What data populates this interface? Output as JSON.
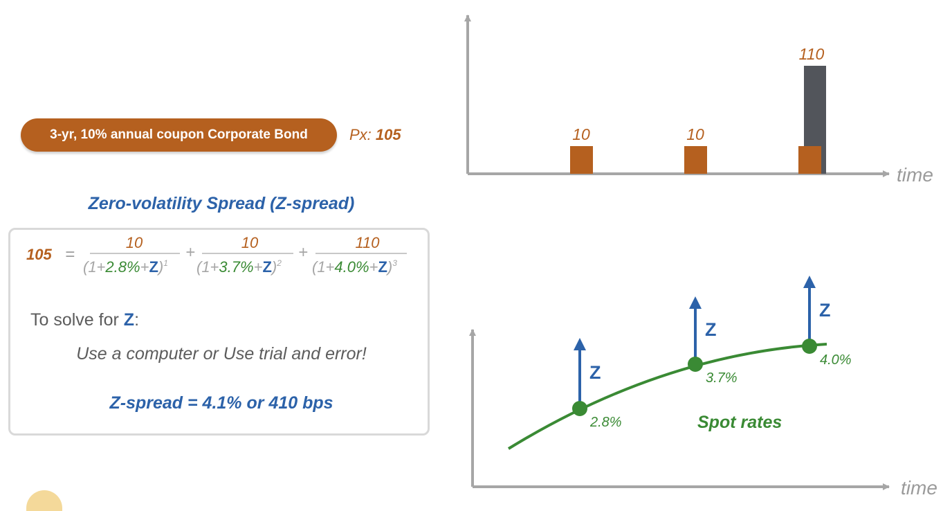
{
  "bond": {
    "label": "3-yr, 10% annual coupon Corporate Bond",
    "price_prefix": "Px: ",
    "price": "105"
  },
  "section_title": "Zero-volatility Spread (Z-spread)",
  "equation": {
    "lhs": "105",
    "equals": "=",
    "plus": "+",
    "terms": [
      {
        "num": "10",
        "pre": "(1+",
        "rate": "2.8%",
        "plus": "+",
        "z": "Z",
        "close": ")",
        "exp": "1"
      },
      {
        "num": "10",
        "pre": "(1+",
        "rate": "3.7%",
        "plus": "+",
        "z": "Z",
        "close": ")",
        "exp": "2"
      },
      {
        "num": "110",
        "pre": "(1+",
        "rate": "4.0%",
        "plus": "+",
        "z": "Z",
        "close": ")",
        "exp": "3"
      }
    ]
  },
  "solve": {
    "prefix": "To solve for ",
    "z": "Z",
    "suffix": ":"
  },
  "method_text": "Use a computer or Use trial and error!",
  "result_text": "Z-spread = 4.1% or 410 bps",
  "cashflow_chart": {
    "axis_label": "time",
    "cashflows": [
      {
        "label": "10",
        "coupon": 10,
        "principal": 0
      },
      {
        "label": "10",
        "coupon": 10,
        "principal": 0
      },
      {
        "label": "110",
        "coupon": 10,
        "principal": 100
      }
    ]
  },
  "spot_chart": {
    "axis_label": "time",
    "curve_label": "Spot rates",
    "spread_label": "Z",
    "points": [
      {
        "rate_label": "2.8%",
        "z_label": "Z"
      },
      {
        "rate_label": "3.7%",
        "z_label": "Z"
      },
      {
        "rate_label": "4.0%",
        "z_label": "Z"
      }
    ]
  },
  "colors": {
    "brown": "#b5601f",
    "blue": "#2c62a9",
    "green": "#3a8a34",
    "gray_axis": "#a6a6a6",
    "gray_text": "#9b9b9b",
    "dark_bar": "#52555b"
  }
}
